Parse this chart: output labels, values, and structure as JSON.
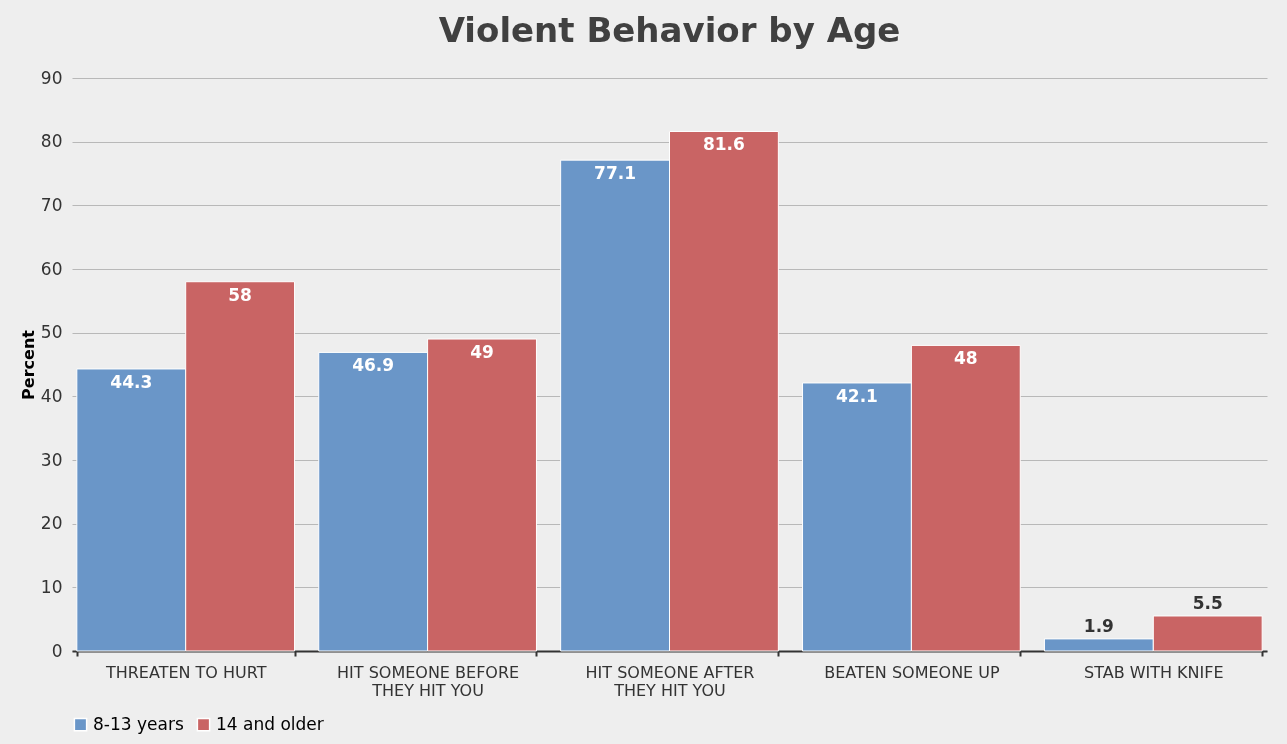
{
  "chart_data": {
    "type": "bar",
    "title": "Violent Behavior by Age",
    "ylabel": "Percent",
    "categories": [
      "THREATEN TO HURT",
      "HIT SOMEONE BEFORE THEY HIT YOU",
      "HIT SOMEONE AFTER THEY HIT YOU",
      "BEATEN SOMEONE UP",
      "STAB WITH KNIFE"
    ],
    "series": [
      {
        "name": "8-13 years",
        "color": "#6a96c8",
        "values": [
          44.3,
          46.9,
          77.1,
          42.1,
          1.9
        ]
      },
      {
        "name": "14 and older",
        "color": "#c96464",
        "values": [
          58,
          49,
          81.6,
          48,
          5.5
        ]
      }
    ],
    "ylim": [
      0,
      90
    ],
    "yticks": [
      0,
      10,
      20,
      30,
      40,
      50,
      60,
      70,
      80,
      90
    ],
    "grid": "y",
    "legend": "bottom",
    "data_labels": true
  }
}
